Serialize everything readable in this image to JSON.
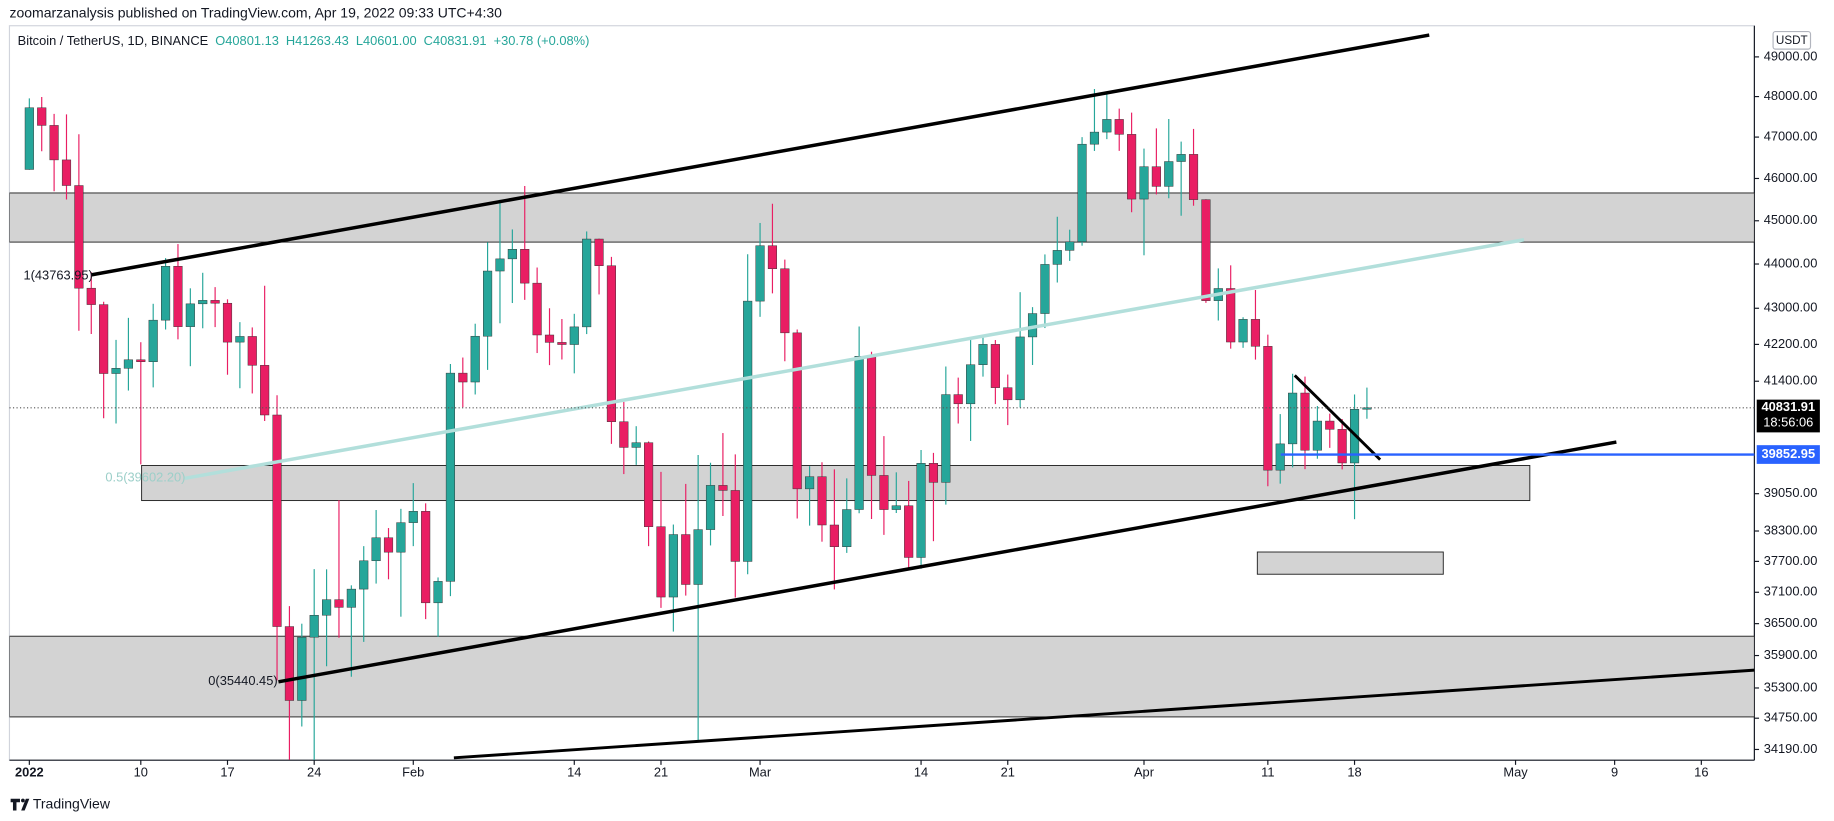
{
  "chart_data": {
    "type": "candlestick",
    "title": "zoomarzanalysis published on TradingView.com, Apr 19, 2022 09:33 UTC+4:30",
    "symbol": "Bitcoin / TetherUS, 1D, BINANCE",
    "ohlc_legend": [
      "O40801.13",
      "H41263.43",
      "L40601.00",
      "C40831.91",
      "+30.78 (+0.08%)"
    ],
    "currency": "USDT",
    "footer": "TradingView",
    "annotations": [
      "1(43763.95)",
      "0.5(39602.20)",
      "0(35440.45)"
    ],
    "up_color": "#26a69a",
    "down_color": "#e91e63",
    "log_scale": true,
    "grid": false,
    "last_price": 40831.91,
    "countdown": "18:56:06",
    "alert_line": 39852.95,
    "ylim": [
      34000,
      49800
    ],
    "yticks": [
      {
        "value": 49000,
        "label": "49000.00"
      },
      {
        "value": 48000,
        "label": "48000.00"
      },
      {
        "value": 47000,
        "label": "47000.00"
      },
      {
        "value": 46000,
        "label": "46000.00"
      },
      {
        "value": 45000,
        "label": "45000.00"
      },
      {
        "value": 44000,
        "label": "44000.00"
      },
      {
        "value": 43000,
        "label": "43000.00"
      },
      {
        "value": 42200,
        "label": "42200.00"
      },
      {
        "value": 41400,
        "label": "41400.00"
      },
      {
        "value": 39050,
        "label": "39050.00"
      },
      {
        "value": 38300,
        "label": "38300.00"
      },
      {
        "value": 37700,
        "label": "37700.00"
      },
      {
        "value": 37100,
        "label": "37100.00"
      },
      {
        "value": 36500,
        "label": "36500.00"
      },
      {
        "value": 35900,
        "label": "35900.00"
      },
      {
        "value": 35300,
        "label": "35300.00"
      },
      {
        "value": 34750,
        "label": "34750.00"
      },
      {
        "value": 34190,
        "label": "34190.00"
      }
    ],
    "xlim": [
      "2022-01-01",
      "2022-05-20"
    ],
    "xticks": [
      {
        "value": "2022-01-01",
        "label": "2022"
      },
      {
        "value": "2022-01-10",
        "label": "10"
      },
      {
        "value": "2022-01-17",
        "label": "17"
      },
      {
        "value": "2022-01-24",
        "label": "24"
      },
      {
        "value": "2022-02-01",
        "label": "Feb"
      },
      {
        "value": "2022-02-14",
        "label": "14"
      },
      {
        "value": "2022-02-21",
        "label": "21"
      },
      {
        "value": "2022-03-01",
        "label": "Mar"
      },
      {
        "value": "2022-03-14",
        "label": "14"
      },
      {
        "value": "2022-03-21",
        "label": "21"
      },
      {
        "value": "2022-04-01",
        "label": "Apr"
      },
      {
        "value": "2022-04-11",
        "label": "11"
      },
      {
        "value": "2022-04-18",
        "label": "18"
      },
      {
        "value": "2022-05-01",
        "label": "May"
      },
      {
        "value": "2022-05-09",
        "label": "9"
      },
      {
        "value": "2022-05-16",
        "label": "16"
      }
    ],
    "x": [
      "2022-01-01",
      "2022-01-02",
      "2022-01-03",
      "2022-01-04",
      "2022-01-05",
      "2022-01-06",
      "2022-01-07",
      "2022-01-08",
      "2022-01-09",
      "2022-01-10",
      "2022-01-11",
      "2022-01-12",
      "2022-01-13",
      "2022-01-14",
      "2022-01-15",
      "2022-01-16",
      "2022-01-17",
      "2022-01-18",
      "2022-01-19",
      "2022-01-20",
      "2022-01-21",
      "2022-01-22",
      "2022-01-23",
      "2022-01-24",
      "2022-01-25",
      "2022-01-26",
      "2022-01-27",
      "2022-01-28",
      "2022-01-29",
      "2022-01-30",
      "2022-01-31",
      "2022-02-01",
      "2022-02-02",
      "2022-02-03",
      "2022-02-04",
      "2022-02-05",
      "2022-02-06",
      "2022-02-07",
      "2022-02-08",
      "2022-02-09",
      "2022-02-10",
      "2022-02-11",
      "2022-02-12",
      "2022-02-13",
      "2022-02-14",
      "2022-02-15",
      "2022-02-16",
      "2022-02-17",
      "2022-02-18",
      "2022-02-19",
      "2022-02-20",
      "2022-02-21",
      "2022-02-22",
      "2022-02-23",
      "2022-02-24",
      "2022-02-25",
      "2022-02-26",
      "2022-02-27",
      "2022-02-28",
      "2022-03-01",
      "2022-03-02",
      "2022-03-03",
      "2022-03-04",
      "2022-03-05",
      "2022-03-06",
      "2022-03-07",
      "2022-03-08",
      "2022-03-09",
      "2022-03-10",
      "2022-03-11",
      "2022-03-12",
      "2022-03-13",
      "2022-03-14",
      "2022-03-15",
      "2022-03-16",
      "2022-03-17",
      "2022-03-18",
      "2022-03-19",
      "2022-03-20",
      "2022-03-21",
      "2022-03-22",
      "2022-03-23",
      "2022-03-24",
      "2022-03-25",
      "2022-03-26",
      "2022-03-27",
      "2022-03-28",
      "2022-03-29",
      "2022-03-30",
      "2022-03-31",
      "2022-04-01",
      "2022-04-02",
      "2022-04-03",
      "2022-04-04",
      "2022-04-05",
      "2022-04-06",
      "2022-04-07",
      "2022-04-08",
      "2022-04-09",
      "2022-04-10",
      "2022-04-11",
      "2022-04-12",
      "2022-04-13",
      "2022-04-14",
      "2022-04-15",
      "2022-04-16",
      "2022-04-17",
      "2022-04-18",
      "2022-04-19"
    ],
    "open": [
      46216,
      47722,
      47286,
      46446,
      45832,
      43451,
      43082,
      41566,
      41679,
      41864,
      41822,
      42735,
      43949,
      42591,
      43099,
      43177,
      43113,
      42250,
      42375,
      41744,
      40680,
      36445,
      35071,
      36244,
      36660,
      36958,
      36810,
      37161,
      37712,
      38166,
      37881,
      38467,
      38694,
      36897,
      37311,
      41575,
      41383,
      42380,
      43840,
      44118,
      44339,
      43565,
      42407,
      42244,
      42197,
      42586,
      44575,
      43961,
      40538,
      40000,
      40099,
      38386,
      37008,
      38230,
      37250,
      38328,
      39219,
      39116,
      37699,
      43160,
      44421,
      43892,
      42454,
      39148,
      39397,
      38420,
      37988,
      38730,
      41941,
      39422,
      38729,
      38807,
      37777,
      39671,
      39280,
      41114,
      40917,
      41757,
      42201,
      41262,
      41002,
      42364,
      42882,
      43991,
      44313,
      44511,
      46827,
      47122,
      47434,
      47067,
      45510,
      46283,
      45811,
      46407,
      46580,
      45497,
      43170,
      43444,
      42252,
      42753,
      42158,
      39530,
      40074,
      41147,
      39942,
      40552,
      40378,
      39678,
      40801.13
    ],
    "high": [
      47954,
      47990,
      47570,
      47557,
      47070,
      43816,
      43145,
      42300,
      42786,
      42248,
      43100,
      44135,
      44458,
      43448,
      43800,
      43475,
      43200,
      42691,
      42574,
      43505,
      41100,
      36835,
      36499,
      37550,
      37545,
      38919,
      37234,
      38000,
      38720,
      38359,
      38744,
      39265,
      38855,
      37387,
      41772,
      41913,
      42656,
      44500,
      45492,
      44798,
      45821,
      43920,
      43000,
      42760,
      42876,
      44751,
      44585,
      44164,
      40959,
      40444,
      40125,
      39494,
      38429,
      39249,
      39843,
      39683,
      40300,
      39855,
      44225,
      44949,
      45400,
      44101,
      42527,
      39613,
      39693,
      39547,
      39362,
      42594,
      42039,
      40236,
      39486,
      39310,
      39947,
      39887,
      41718,
      41478,
      42325,
      42400,
      42296,
      41544,
      43361,
      43025,
      44220,
      45094,
      44792,
      46999,
      48189,
      48096,
      47700,
      47600,
      46720,
      47213,
      47444,
      46890,
      47200,
      45507,
      43900,
      43970,
      42800,
      43410,
      42414,
      40699,
      41561,
      41500,
      40870,
      40709,
      40595,
      41116,
      41263.43
    ],
    "low": [
      46208,
      46654,
      45696,
      45500,
      42500,
      42430,
      40610,
      40501,
      41200,
      39650,
      41268,
      42528,
      42311,
      41725,
      42555,
      42581,
      41540,
      41250,
      41138,
      40553,
      35440.45,
      34008,
      34601,
      32917,
      35701,
      36234,
      35507,
      36155,
      37268,
      37351,
      36632,
      38000,
      36586,
      36250,
      37026,
      40843,
      41116,
      41645,
      42666,
      43117,
      43188,
      42011,
      41748,
      41870,
      41570,
      42427,
      43310,
      40073,
      39450,
      39639,
      38000,
      36800,
      36350,
      37036,
      34322,
      38014,
      38600,
      37000,
      37450,
      42809,
      43334,
      41832,
      38550,
      38407,
      38088,
      37155,
      37867,
      38656,
      38539,
      38223,
      38660,
      37578,
      37555,
      38098,
      38828,
      40500,
      40135,
      41499,
      40911,
      40467,
      40840,
      41751,
      42560,
      43579,
      44071,
      44421,
      46663,
      46950,
      46665,
      45200,
      44200,
      45620,
      45530,
      45118,
      45353,
      43121,
      42727,
      42107,
      42125,
      41868,
      39200,
      39254,
      39588,
      39551,
      39766,
      39991,
      39546,
      38536,
      40601
    ],
    "close": [
      47722,
      47286,
      46446,
      45832,
      43451,
      43082,
      41566,
      41679,
      41864,
      41822,
      42735,
      43949,
      42591,
      43099,
      43177,
      43113,
      42250,
      42375,
      41744,
      40680,
      36445,
      35071,
      36244,
      36660,
      36958,
      36810,
      37161,
      37712,
      38166,
      37881,
      38467,
      38694,
      36897,
      37311,
      41575,
      41383,
      42380,
      43840,
      44118,
      44339,
      43565,
      42407,
      42244,
      42197,
      42586,
      44575,
      43961,
      40538,
      40000,
      40099,
      38386,
      37008,
      38230,
      37250,
      38328,
      39219,
      39116,
      37699,
      43160,
      44421,
      43892,
      42454,
      39148,
      39397,
      38420,
      37988,
      38730,
      41941,
      39422,
      38729,
      38807,
      37777,
      39671,
      39280,
      41114,
      40917,
      41757,
      42201,
      41262,
      41002,
      42364,
      42882,
      43991,
      44313,
      44511,
      46827,
      47122,
      47434,
      47067,
      45510,
      46283,
      45811,
      46407,
      46580,
      45497,
      43170,
      43444,
      42252,
      42753,
      42158,
      39530,
      40074,
      41147,
      39942,
      40552,
      40378,
      39678,
      40801.13,
      40831.91
    ]
  }
}
